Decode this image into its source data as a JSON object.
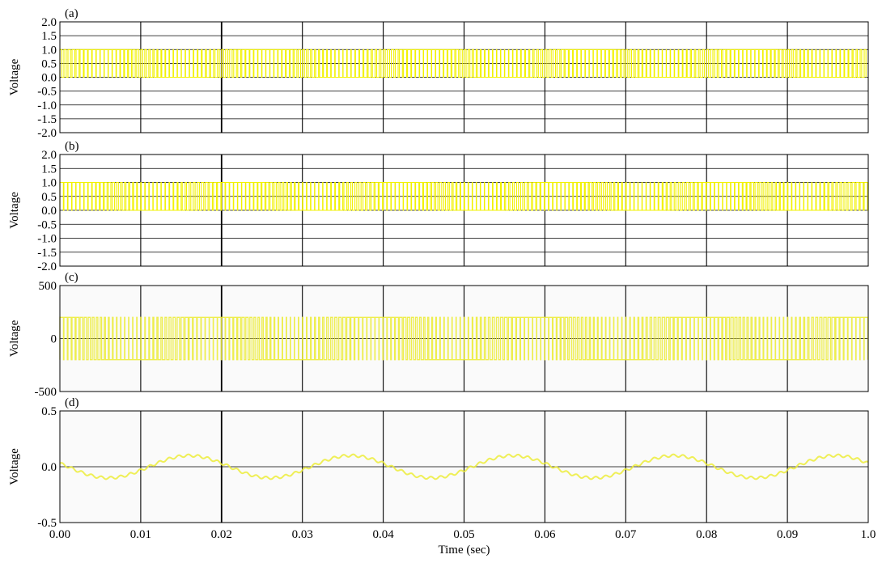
{
  "chart_data": [
    {
      "type": "line",
      "panel_label": "(a)",
      "ylabel": "Voltage",
      "ylim": [
        -2.0,
        2.0
      ],
      "yticks": [
        "2.0",
        "1.5",
        "1.0",
        "0.5",
        "0.0",
        "-0.5",
        "-1.0",
        "-1.5",
        "-2.0"
      ],
      "xlim": [
        0,
        0.1
      ],
      "signal": "unipolar PWM pulse train switching between 0.0 and 1.0",
      "series": [
        {
          "levels": [
            0.0,
            1.0
          ]
        }
      ],
      "grid": true,
      "background": "#ffffff"
    },
    {
      "type": "line",
      "panel_label": "(b)",
      "ylabel": "Voltage",
      "ylim": [
        -2.0,
        2.0
      ],
      "yticks": [
        "2.0",
        "1.5",
        "1.0",
        "0.5",
        "0.0",
        "-0.5",
        "-1.0",
        "-1.5",
        "-2.0"
      ],
      "xlim": [
        0,
        0.1
      ],
      "signal": "unipolar PWM pulse train switching between 0.0 and 1.0",
      "series": [
        {
          "levels": [
            0.0,
            1.0
          ]
        }
      ],
      "grid": true,
      "background": "#ffffff"
    },
    {
      "type": "line",
      "panel_label": "(c)",
      "ylabel": "Voltage",
      "ylim": [
        -500,
        500
      ],
      "yticks": [
        "500",
        "0",
        "-500"
      ],
      "xlim": [
        0,
        0.1
      ],
      "signal": "bipolar PWM voltage switching between about -200 and 200",
      "series": [
        {
          "levels": [
            -200,
            200
          ]
        }
      ],
      "grid": true,
      "background": "#fafafa"
    },
    {
      "type": "line",
      "panel_label": "(d)",
      "ylabel": "Voltage",
      "ylim": [
        -0.5,
        0.5
      ],
      "yticks": [
        "0.5",
        "0.0",
        "-0.5"
      ],
      "xlim": [
        0,
        0.1
      ],
      "signal": "sinusoid with small ripple",
      "series": [
        {
          "amplitude": 0.1,
          "period": 0.02,
          "peak_at": 0.016
        }
      ],
      "grid": true,
      "background": "#fafafa"
    }
  ],
  "x_axis": {
    "ticks": [
      "0.00",
      "0.01",
      "0.02",
      "0.03",
      "0.04",
      "0.05",
      "0.06",
      "0.07",
      "0.08",
      "0.09",
      "1.0"
    ],
    "label": "Time (sec)"
  },
  "colors": {
    "signal": "#f2f200",
    "signal_light": "#ecec3a",
    "grid": "#000000",
    "axes": "#000000"
  }
}
